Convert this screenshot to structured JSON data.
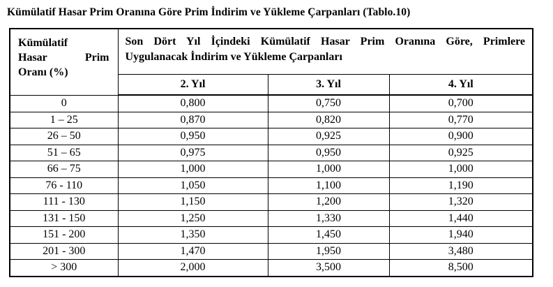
{
  "title": "Kümülatif Hasar Prim Oranına Göre Prim İndirim ve Yükleme Çarpanları (Tablo.10)",
  "table": {
    "corner_header_lines": [
      "Kümülatif",
      "Hasar Prim",
      "Oranı (%)"
    ],
    "span_header_lines": [
      "Son Dört Yıl İçindeki Kümülatif Hasar Prim Oranına Göre, Primlere",
      "Uygulanacak İndirim ve Yükleme Çarpanları"
    ],
    "year_headers": [
      "2. Yıl",
      "3. Yıl",
      "4. Yıl"
    ],
    "rows": [
      {
        "range": "0",
        "values": [
          "0,800",
          "0,750",
          "0,700"
        ]
      },
      {
        "range": "1 – 25",
        "values": [
          "0,870",
          "0,820",
          "0,770"
        ]
      },
      {
        "range": "26 – 50",
        "values": [
          "0,950",
          "0,925",
          "0,900"
        ]
      },
      {
        "range": "51 – 65",
        "values": [
          "0,975",
          "0,950",
          "0,925"
        ]
      },
      {
        "range": "66 – 75",
        "values": [
          "1,000",
          "1,000",
          "1,000"
        ]
      },
      {
        "range": "76 - 110",
        "values": [
          "1,050",
          "1,100",
          "1,190"
        ]
      },
      {
        "range": "111 - 130",
        "values": [
          "1,150",
          "1,200",
          "1,320"
        ]
      },
      {
        "range": "131 - 150",
        "values": [
          "1,250",
          "1,330",
          "1,440"
        ]
      },
      {
        "range": "151 - 200",
        "values": [
          "1,350",
          "1,450",
          "1,940"
        ]
      },
      {
        "range": "201 - 300",
        "values": [
          "1,470",
          "1,950",
          "3,480"
        ]
      },
      {
        "range": "> 300",
        "values": [
          "2,000",
          "3,500",
          "8,500"
        ]
      }
    ]
  }
}
